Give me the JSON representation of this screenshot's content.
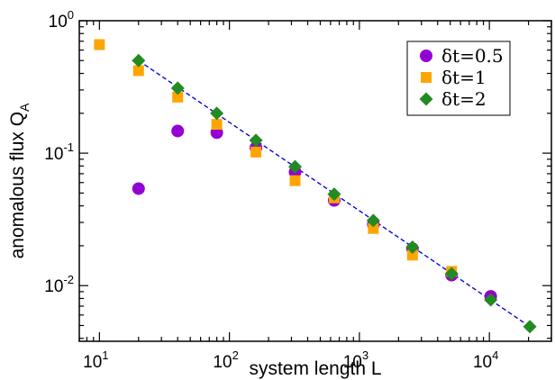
{
  "chart_data": {
    "type": "scatter",
    "title": "",
    "xlabel": "system length L",
    "ylabel": "anomalous flux Q",
    "ylabel_subscript": "A",
    "xscale": "log",
    "yscale": "log",
    "xlim": [
      7,
      30000
    ],
    "ylim": [
      0.0038,
      1.0
    ],
    "x_ticks": [
      {
        "value": 10,
        "base": "10",
        "exp": "1"
      },
      {
        "value": 100,
        "base": "10",
        "exp": "2"
      },
      {
        "value": 1000,
        "base": "10",
        "exp": "3"
      },
      {
        "value": 10000,
        "base": "10",
        "exp": "4"
      }
    ],
    "y_ticks": [
      {
        "value": 1.0,
        "base": "10",
        "exp": "0"
      },
      {
        "value": 0.1,
        "base": "10",
        "exp": "-1"
      },
      {
        "value": 0.01,
        "base": "10",
        "exp": "-2"
      }
    ],
    "legend_position": "top-right",
    "grid": false,
    "series": [
      {
        "name": "δt=0.5",
        "marker": "circle",
        "color": "#9400d3",
        "points": [
          {
            "x": 20,
            "y": 0.054
          },
          {
            "x": 40,
            "y": 0.147
          },
          {
            "x": 80,
            "y": 0.143
          },
          {
            "x": 160,
            "y": 0.11
          },
          {
            "x": 320,
            "y": 0.072
          },
          {
            "x": 640,
            "y": 0.044
          },
          {
            "x": 1280,
            "y": 0.029
          },
          {
            "x": 2560,
            "y": 0.019
          },
          {
            "x": 5120,
            "y": 0.012
          },
          {
            "x": 10240,
            "y": 0.0083
          }
        ]
      },
      {
        "name": "δt=1",
        "marker": "square",
        "color": "#ffa500",
        "points": [
          {
            "x": 10,
            "y": 0.66
          },
          {
            "x": 20,
            "y": 0.42
          },
          {
            "x": 40,
            "y": 0.265
          },
          {
            "x": 80,
            "y": 0.165
          },
          {
            "x": 160,
            "y": 0.102
          },
          {
            "x": 320,
            "y": 0.062
          },
          {
            "x": 640,
            "y": 0.046
          },
          {
            "x": 1280,
            "y": 0.027
          },
          {
            "x": 2560,
            "y": 0.017
          },
          {
            "x": 5120,
            "y": 0.0128
          }
        ]
      },
      {
        "name": "δt=2",
        "marker": "diamond",
        "color": "#228b22",
        "points": [
          {
            "x": 20,
            "y": 0.5
          },
          {
            "x": 40,
            "y": 0.31
          },
          {
            "x": 80,
            "y": 0.2
          },
          {
            "x": 160,
            "y": 0.125
          },
          {
            "x": 320,
            "y": 0.079
          },
          {
            "x": 640,
            "y": 0.049
          },
          {
            "x": 1280,
            "y": 0.031
          },
          {
            "x": 2560,
            "y": 0.0195
          },
          {
            "x": 5120,
            "y": 0.0123
          },
          {
            "x": 10240,
            "y": 0.0078
          },
          {
            "x": 20480,
            "y": 0.0049
          }
        ]
      }
    ],
    "fit_line": {
      "style": "dashed",
      "color": "#0000cd",
      "x": [
        20,
        20480
      ],
      "y": [
        0.5,
        0.0049
      ]
    }
  }
}
